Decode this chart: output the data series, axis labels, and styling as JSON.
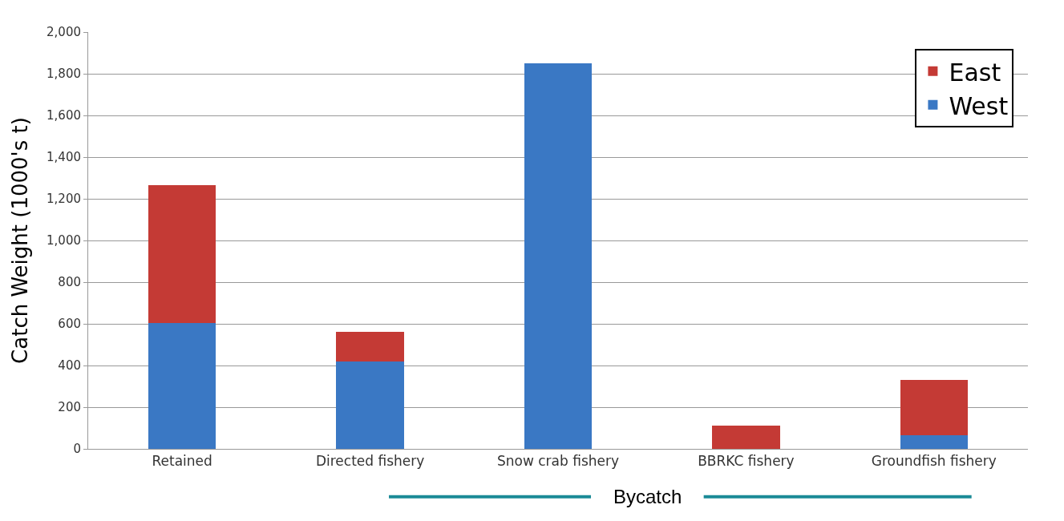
{
  "chart_data": {
    "type": "bar",
    "stacked": true,
    "ylabel": "Catch Weight (1000's t)",
    "categories": [
      "Retained",
      "Directed fishery",
      "Snow crab fishery",
      "BBRKC fishery",
      "Groundfish fishery"
    ],
    "series": [
      {
        "name": "West",
        "color": "#3a78c4",
        "values": [
          605,
          420,
          1850,
          0,
          65
        ]
      },
      {
        "name": "East",
        "color": "#c43a35",
        "values": [
          660,
          140,
          0,
          110,
          265
        ]
      }
    ],
    "ylim": [
      0,
      2000
    ],
    "yticks": [
      0,
      {
        "value": 200,
        "label": "200"
      },
      {
        "value": 400,
        "label": "400"
      },
      {
        "value": 600,
        "label": "600"
      },
      {
        "value": 800,
        "label": "800"
      },
      {
        "value": 1000,
        "label": "1,000"
      },
      {
        "value": 1200,
        "label": "1,200"
      },
      {
        "value": 1400,
        "label": "1,400"
      },
      {
        "value": 1600,
        "label": "1,600"
      },
      {
        "value": 1800,
        "label": "1,800"
      },
      {
        "value": 2000,
        "label": "2,000"
      }
    ],
    "grid": "y",
    "legend": "top right",
    "annotations": [
      "Bycatch"
    ]
  }
}
